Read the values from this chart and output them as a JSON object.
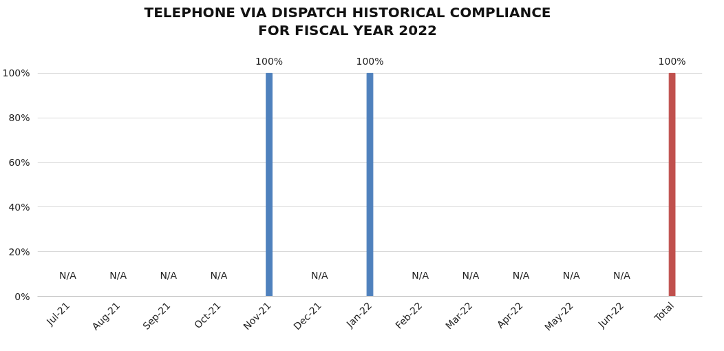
{
  "chart_data": {
    "type": "bar",
    "title": "TELEPHONE VIA DISPATCH HISTORICAL COMPLIANCE\nFOR FISCAL YEAR 2022",
    "categories": [
      "Jul-21",
      "Aug-21",
      "Sep-21",
      "Oct-21",
      "Nov-21",
      "Dec-21",
      "Jan-22",
      "Feb-22",
      "Mar-22",
      "Apr-22",
      "May-22",
      "Jun-22",
      "Total"
    ],
    "values": [
      null,
      null,
      null,
      null,
      100,
      null,
      100,
      null,
      null,
      null,
      null,
      null,
      100
    ],
    "colors": [
      "#4f81bd",
      "#4f81bd",
      "#4f81bd",
      "#4f81bd",
      "#4f81bd",
      "#4f81bd",
      "#4f81bd",
      "#4f81bd",
      "#4f81bd",
      "#4f81bd",
      "#4f81bd",
      "#4f81bd",
      "#c0504d"
    ],
    "value_labels": [
      "N/A",
      "N/A",
      "N/A",
      "N/A",
      "100%",
      "N/A",
      "100%",
      "N/A",
      "N/A",
      "N/A",
      "N/A",
      "N/A",
      "100%"
    ],
    "ylim": [
      0,
      100
    ],
    "yticks": [
      {
        "value": 0,
        "label": "0%"
      },
      {
        "value": 20,
        "label": "20%"
      },
      {
        "value": 40,
        "label": "40%"
      },
      {
        "value": 60,
        "label": "60%"
      },
      {
        "value": 80,
        "label": "80%"
      },
      {
        "value": 100,
        "label": "100%"
      }
    ],
    "grid": "y"
  }
}
